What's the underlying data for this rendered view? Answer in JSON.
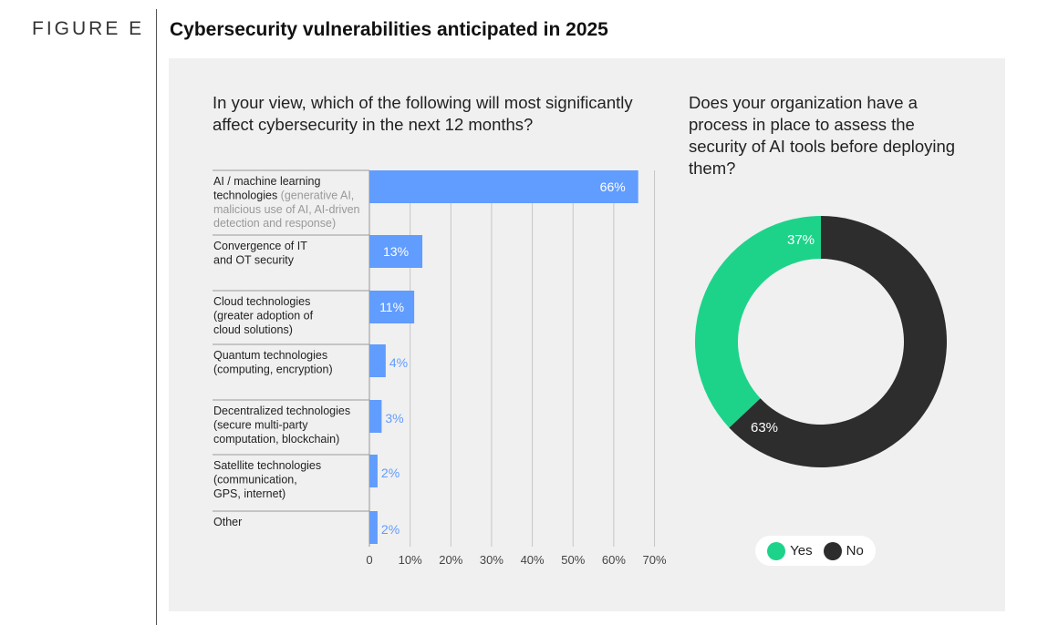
{
  "header": {
    "figure_label": "FIGURE E",
    "title": "Cybersecurity vulnerabilities anticipated in 2025"
  },
  "colors": {
    "bar": "#619cff",
    "yes": "#1dd38a",
    "no": "#2d2d2d",
    "panel": "#f0f0f0"
  },
  "chart_data": [
    {
      "type": "bar",
      "orientation": "horizontal",
      "title": "In your view, which of the following will most significantly affect cybersecurity in the next 12 months?",
      "categories": [
        {
          "main": [
            "AI / machine learning",
            "technologies"
          ],
          "sub_inline": "(generative AI,",
          "sub": [
            "malicious use of AI, AI-driven",
            "detection and response)"
          ]
        },
        {
          "main": [
            "Convergence of IT",
            "and OT security"
          ],
          "sub_inline": "",
          "sub": []
        },
        {
          "main": [
            "Cloud technologies",
            "(greater adoption of",
            "cloud solutions)"
          ],
          "sub_inline": "",
          "sub": []
        },
        {
          "main": [
            "Quantum technologies",
            "(computing, encryption)"
          ],
          "sub_inline": "",
          "sub": []
        },
        {
          "main": [
            "Decentralized technologies",
            "(secure multi-party",
            "computation, blockchain)"
          ],
          "sub_inline": "",
          "sub": []
        },
        {
          "main": [
            "Satellite technologies",
            "(communication,",
            "GPS, internet)"
          ],
          "sub_inline": "",
          "sub": []
        },
        {
          "main": [
            "Other"
          ],
          "sub_inline": "",
          "sub": []
        }
      ],
      "values": [
        66,
        13,
        11,
        4,
        3,
        2,
        2
      ],
      "value_labels": [
        "66%",
        "13%",
        "11%",
        "4%",
        "3%",
        "2%",
        "2%"
      ],
      "xlim": [
        0,
        70
      ],
      "xticks": [
        0,
        10,
        20,
        30,
        40,
        50,
        60,
        70
      ],
      "xtick_labels": [
        "0",
        "10%",
        "20%",
        "30%",
        "40%",
        "50%",
        "60%",
        "70%"
      ],
      "grid": true
    },
    {
      "type": "pie",
      "donut": true,
      "title": "Does your organization have a process in place to assess the security of AI tools before deploying them?",
      "labels": [
        "Yes",
        "No"
      ],
      "values": [
        37,
        63
      ],
      "value_labels": [
        "37%",
        "63%"
      ],
      "legend": "bottom"
    }
  ]
}
